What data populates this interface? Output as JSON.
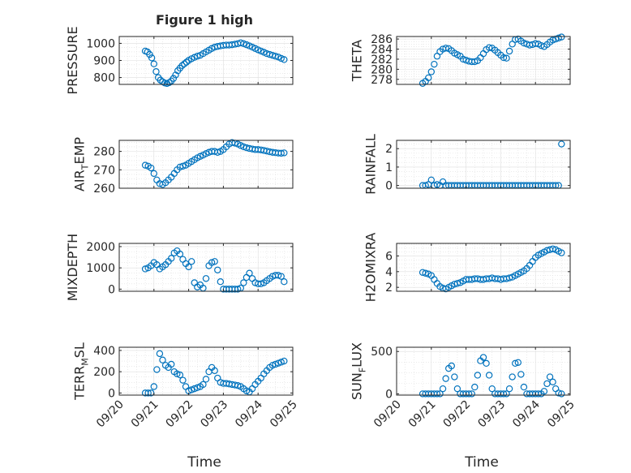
{
  "figure": {
    "title": "Figure 1 high",
    "xlabel": "Time",
    "x_ticks": [
      "09/20",
      "09/21",
      "09/22",
      "09/23",
      "09/24",
      "09/25"
    ]
  },
  "colors": {
    "marker": "#0072bd",
    "axis": "#262626",
    "grid": "#dedede",
    "background": "#ffffff"
  },
  "chart_data": [
    {
      "type": "scatter",
      "id": "pressure",
      "ylabel": "PRESSURE",
      "ylim": [
        760,
        1040
      ],
      "yticks": [
        800,
        900,
        1000
      ],
      "ytick_labels": [
        "800",
        "900",
        "1000"
      ],
      "grid": true,
      "x": [
        "2019-09-20 18:00",
        "2019-09-20 19:30",
        "2019-09-20 21:00",
        "2019-09-20 22:30",
        "2019-09-21 00:00",
        "2019-09-21 01:30",
        "2019-09-21 03:00",
        "2019-09-21 04:30",
        "2019-09-21 06:00",
        "2019-09-21 07:30",
        "2019-09-21 09:00",
        "2019-09-21 10:30",
        "2019-09-21 12:00",
        "2019-09-21 13:30",
        "2019-09-21 15:00",
        "2019-09-21 16:30",
        "2019-09-21 18:00",
        "2019-09-21 19:30",
        "2019-09-21 21:00",
        "2019-09-21 22:30",
        "2019-09-22 00:00",
        "2019-09-22 02:00",
        "2019-09-22 04:00",
        "2019-09-22 06:00",
        "2019-09-22 08:00",
        "2019-09-22 10:00",
        "2019-09-22 12:00",
        "2019-09-22 14:00",
        "2019-09-22 16:00",
        "2019-09-22 18:00",
        "2019-09-22 20:00",
        "2019-09-22 22:00",
        "2019-09-23 00:00",
        "2019-09-23 02:00",
        "2019-09-23 04:00",
        "2019-09-23 06:00",
        "2019-09-23 08:00",
        "2019-09-23 10:00",
        "2019-09-23 12:00",
        "2019-09-23 14:00",
        "2019-09-23 16:00",
        "2019-09-23 18:00",
        "2019-09-23 20:00",
        "2019-09-23 22:00",
        "2019-09-24 00:00",
        "2019-09-24 02:00",
        "2019-09-24 04:00",
        "2019-09-24 06:00",
        "2019-09-24 08:00",
        "2019-09-24 10:00",
        "2019-09-24 12:00",
        "2019-09-24 14:00",
        "2019-09-24 16:00",
        "2019-09-24 18:00"
      ],
      "y": [
        955,
        950,
        935,
        915,
        880,
        835,
        800,
        785,
        775,
        768,
        765,
        770,
        780,
        795,
        815,
        840,
        855,
        870,
        880,
        890,
        900,
        910,
        918,
        925,
        930,
        940,
        950,
        960,
        970,
        978,
        982,
        985,
        988,
        990,
        990,
        992,
        995,
        998,
        1003,
        998,
        992,
        985,
        978,
        970,
        962,
        955,
        948,
        940,
        935,
        930,
        925,
        920,
        912,
        905
      ]
    },
    {
      "type": "scatter",
      "id": "theta",
      "ylabel": "THETA",
      "ylim": [
        277,
        286.5
      ],
      "yticks": [
        278,
        280,
        282,
        284,
        286
      ],
      "ytick_labels": [
        "278",
        "280",
        "282",
        "284",
        "286"
      ],
      "grid": true,
      "x": [
        "2019-09-20 18:00",
        "2019-09-20 20:00",
        "2019-09-20 22:00",
        "2019-09-21 00:00",
        "2019-09-21 02:00",
        "2019-09-21 04:00",
        "2019-09-21 06:00",
        "2019-09-21 08:00",
        "2019-09-21 10:00",
        "2019-09-21 12:00",
        "2019-09-21 14:00",
        "2019-09-21 16:00",
        "2019-09-21 18:00",
        "2019-09-21 20:00",
        "2019-09-21 22:00",
        "2019-09-22 00:00",
        "2019-09-22 02:00",
        "2019-09-22 04:00",
        "2019-09-22 06:00",
        "2019-09-22 08:00",
        "2019-09-22 10:00",
        "2019-09-22 12:00",
        "2019-09-22 14:00",
        "2019-09-22 16:00",
        "2019-09-22 18:00",
        "2019-09-22 20:00",
        "2019-09-22 22:00",
        "2019-09-23 00:00",
        "2019-09-23 02:00",
        "2019-09-23 04:00",
        "2019-09-23 06:00",
        "2019-09-23 08:00",
        "2019-09-23 10:00",
        "2019-09-23 12:00",
        "2019-09-23 14:00",
        "2019-09-23 16:00",
        "2019-09-23 18:00",
        "2019-09-23 20:00",
        "2019-09-23 22:00",
        "2019-09-24 00:00",
        "2019-09-24 02:00",
        "2019-09-24 04:00",
        "2019-09-24 06:00",
        "2019-09-24 08:00",
        "2019-09-24 10:00",
        "2019-09-24 12:00",
        "2019-09-24 14:00",
        "2019-09-24 16:00",
        "2019-09-24 18:00"
      ],
      "y": [
        277.2,
        277.6,
        278.3,
        279.5,
        281.0,
        282.6,
        283.5,
        284.0,
        284.2,
        284.1,
        283.7,
        283.2,
        282.9,
        282.6,
        282.0,
        281.8,
        281.6,
        281.5,
        281.5,
        281.7,
        282.3,
        283.1,
        283.9,
        284.3,
        284.2,
        283.8,
        283.3,
        282.8,
        282.3,
        282.2,
        283.6,
        285.0,
        285.9,
        286.0,
        285.6,
        285.2,
        285.0,
        284.8,
        284.9,
        285.1,
        285.0,
        284.7,
        284.5,
        284.9,
        285.4,
        285.8,
        286.0,
        286.2,
        286.4
      ]
    },
    {
      "type": "scatter",
      "id": "air-temp",
      "ylabel": "AIR_TEMP",
      "ylabel_parts": [
        "AIR",
        "T",
        "EMP"
      ],
      "ylim": [
        260,
        286
      ],
      "yticks": [
        260,
        270,
        280
      ],
      "ytick_labels": [
        "260",
        "270",
        "280"
      ],
      "grid": true,
      "x": [
        "2019-09-20 18:00",
        "2019-09-20 20:00",
        "2019-09-20 22:00",
        "2019-09-21 00:00",
        "2019-09-21 02:00",
        "2019-09-21 04:00",
        "2019-09-21 06:00",
        "2019-09-21 08:00",
        "2019-09-21 10:00",
        "2019-09-21 12:00",
        "2019-09-21 14:00",
        "2019-09-21 16:00",
        "2019-09-21 18:00",
        "2019-09-21 20:00",
        "2019-09-21 22:00",
        "2019-09-22 00:00",
        "2019-09-22 02:00",
        "2019-09-22 04:00",
        "2019-09-22 06:00",
        "2019-09-22 08:00",
        "2019-09-22 10:00",
        "2019-09-22 12:00",
        "2019-09-22 14:00",
        "2019-09-22 16:00",
        "2019-09-22 18:00",
        "2019-09-22 20:00",
        "2019-09-22 22:00",
        "2019-09-23 00:00",
        "2019-09-23 02:00",
        "2019-09-23 04:00",
        "2019-09-23 06:00",
        "2019-09-23 08:00",
        "2019-09-23 10:00",
        "2019-09-23 12:00",
        "2019-09-23 14:00",
        "2019-09-23 16:00",
        "2019-09-23 18:00",
        "2019-09-23 20:00",
        "2019-09-23 22:00",
        "2019-09-24 00:00",
        "2019-09-24 02:00",
        "2019-09-24 04:00",
        "2019-09-24 06:00",
        "2019-09-24 08:00",
        "2019-09-24 10:00",
        "2019-09-24 12:00",
        "2019-09-24 14:00",
        "2019-09-24 16:00",
        "2019-09-24 18:00"
      ],
      "y": [
        272.5,
        272.0,
        271.0,
        268.0,
        264.5,
        262.5,
        262.0,
        263.0,
        264.5,
        266.0,
        268.0,
        270.0,
        271.5,
        272.0,
        272.5,
        273.5,
        274.5,
        275.5,
        276.5,
        277.3,
        278.0,
        278.8,
        279.5,
        280.0,
        280.0,
        279.5,
        280.0,
        281.0,
        282.5,
        284.0,
        284.8,
        284.5,
        284.0,
        283.2,
        282.5,
        282.0,
        281.6,
        281.3,
        281.0,
        281.0,
        280.8,
        280.5,
        280.2,
        279.8,
        279.5,
        279.3,
        279.1,
        279.0,
        279.2
      ]
    },
    {
      "type": "scatter",
      "id": "rainfall",
      "ylabel": "RAINFALL",
      "ylim": [
        -0.15,
        2.45
      ],
      "yticks": [
        0,
        1,
        2
      ],
      "ytick_labels": [
        "0",
        "1",
        "2"
      ],
      "grid": true,
      "x": [
        "2019-09-20 18:00",
        "2019-09-20 20:00",
        "2019-09-20 22:00",
        "2019-09-21 00:00",
        "2019-09-21 02:00",
        "2019-09-21 04:00",
        "2019-09-21 06:00",
        "2019-09-21 08:00",
        "2019-09-21 10:00",
        "2019-09-21 12:00",
        "2019-09-21 14:00",
        "2019-09-21 16:00",
        "2019-09-21 18:00",
        "2019-09-21 20:00",
        "2019-09-21 22:00",
        "2019-09-22 00:00",
        "2019-09-22 02:00",
        "2019-09-22 04:00",
        "2019-09-22 06:00",
        "2019-09-22 08:00",
        "2019-09-22 10:00",
        "2019-09-22 12:00",
        "2019-09-22 14:00",
        "2019-09-22 16:00",
        "2019-09-22 18:00",
        "2019-09-22 20:00",
        "2019-09-22 22:00",
        "2019-09-23 00:00",
        "2019-09-23 02:00",
        "2019-09-23 04:00",
        "2019-09-23 06:00",
        "2019-09-23 08:00",
        "2019-09-23 10:00",
        "2019-09-23 12:00",
        "2019-09-23 14:00",
        "2019-09-23 16:00",
        "2019-09-23 18:00",
        "2019-09-23 20:00",
        "2019-09-23 22:00",
        "2019-09-24 00:00",
        "2019-09-24 02:00",
        "2019-09-24 04:00",
        "2019-09-24 06:00",
        "2019-09-24 08:00",
        "2019-09-24 10:00",
        "2019-09-24 12:00",
        "2019-09-24 14:00",
        "2019-09-24 16:00",
        "2019-09-24 18:00"
      ],
      "y": [
        0,
        0,
        0.05,
        0.3,
        0,
        0.05,
        0,
        0.2,
        0,
        0,
        0,
        0,
        0,
        0,
        0,
        0,
        0,
        0,
        0,
        0,
        0,
        0,
        0,
        0,
        0,
        0,
        0,
        0,
        0,
        0,
        0,
        0,
        0,
        0,
        0,
        0,
        0,
        0,
        0,
        0,
        0,
        0,
        0,
        0,
        0,
        0,
        0,
        0,
        2.25
      ]
    },
    {
      "type": "scatter",
      "id": "mixdepth",
      "ylabel": "MIXDEPTH",
      "ylim": [
        -100,
        2150
      ],
      "yticks": [
        0,
        1000,
        2000
      ],
      "ytick_labels": [
        "0",
        "1000",
        "2000"
      ],
      "grid": true,
      "x": [
        "2019-09-20 18:00",
        "2019-09-20 20:00",
        "2019-09-20 22:00",
        "2019-09-21 00:00",
        "2019-09-21 02:00",
        "2019-09-21 04:00",
        "2019-09-21 06:00",
        "2019-09-21 08:00",
        "2019-09-21 10:00",
        "2019-09-21 12:00",
        "2019-09-21 14:00",
        "2019-09-21 16:00",
        "2019-09-21 18:00",
        "2019-09-21 20:00",
        "2019-09-21 22:00",
        "2019-09-22 00:00",
        "2019-09-22 02:00",
        "2019-09-22 04:00",
        "2019-09-22 06:00",
        "2019-09-22 08:00",
        "2019-09-22 10:00",
        "2019-09-22 12:00",
        "2019-09-22 14:00",
        "2019-09-22 16:00",
        "2019-09-22 18:00",
        "2019-09-22 20:00",
        "2019-09-22 22:00",
        "2019-09-23 00:00",
        "2019-09-23 02:00",
        "2019-09-23 04:00",
        "2019-09-23 06:00",
        "2019-09-23 08:00",
        "2019-09-23 10:00",
        "2019-09-23 12:00",
        "2019-09-23 14:00",
        "2019-09-23 16:00",
        "2019-09-23 18:00",
        "2019-09-23 20:00",
        "2019-09-23 22:00",
        "2019-09-24 00:00",
        "2019-09-24 02:00",
        "2019-09-24 04:00",
        "2019-09-24 06:00",
        "2019-09-24 08:00",
        "2019-09-24 10:00",
        "2019-09-24 12:00",
        "2019-09-24 14:00",
        "2019-09-24 16:00",
        "2019-09-24 18:00"
      ],
      "y": [
        950,
        1000,
        1100,
        1250,
        1150,
        950,
        1050,
        1150,
        1300,
        1450,
        1700,
        1800,
        1650,
        1400,
        1200,
        1050,
        1300,
        300,
        100,
        200,
        50,
        500,
        1100,
        1250,
        1300,
        900,
        350,
        0,
        0,
        0,
        0,
        0,
        0,
        50,
        300,
        550,
        750,
        500,
        300,
        250,
        250,
        300,
        400,
        500,
        600,
        650,
        650,
        600,
        350
      ]
    },
    {
      "type": "scatter",
      "id": "h2omixra",
      "ylabel": "H2OMIXRA",
      "ylim": [
        1.5,
        7.6
      ],
      "yticks": [
        2,
        4,
        6
      ],
      "ytick_labels": [
        "2",
        "4",
        "6"
      ],
      "grid": true,
      "x": [
        "2019-09-20 18:00",
        "2019-09-20 20:00",
        "2019-09-20 22:00",
        "2019-09-21 00:00",
        "2019-09-21 02:00",
        "2019-09-21 04:00",
        "2019-09-21 06:00",
        "2019-09-21 08:00",
        "2019-09-21 10:00",
        "2019-09-21 12:00",
        "2019-09-21 14:00",
        "2019-09-21 16:00",
        "2019-09-21 18:00",
        "2019-09-21 20:00",
        "2019-09-21 22:00",
        "2019-09-22 00:00",
        "2019-09-22 02:00",
        "2019-09-22 04:00",
        "2019-09-22 06:00",
        "2019-09-22 08:00",
        "2019-09-22 10:00",
        "2019-09-22 12:00",
        "2019-09-22 14:00",
        "2019-09-22 16:00",
        "2019-09-22 18:00",
        "2019-09-22 20:00",
        "2019-09-22 22:00",
        "2019-09-23 00:00",
        "2019-09-23 02:00",
        "2019-09-23 04:00",
        "2019-09-23 06:00",
        "2019-09-23 08:00",
        "2019-09-23 10:00",
        "2019-09-23 12:00",
        "2019-09-23 14:00",
        "2019-09-23 16:00",
        "2019-09-23 18:00",
        "2019-09-23 20:00",
        "2019-09-23 22:00",
        "2019-09-24 00:00",
        "2019-09-24 02:00",
        "2019-09-24 04:00",
        "2019-09-24 06:00",
        "2019-09-24 08:00",
        "2019-09-24 10:00",
        "2019-09-24 12:00",
        "2019-09-24 14:00",
        "2019-09-24 16:00",
        "2019-09-24 18:00"
      ],
      "y": [
        3.9,
        3.8,
        3.7,
        3.5,
        3.0,
        2.5,
        2.1,
        1.9,
        1.8,
        2.0,
        2.2,
        2.4,
        2.5,
        2.6,
        2.8,
        3.0,
        3.0,
        3.0,
        3.1,
        3.1,
        3.0,
        3.0,
        3.1,
        3.1,
        3.2,
        3.1,
        3.1,
        3.0,
        3.1,
        3.1,
        3.2,
        3.3,
        3.5,
        3.7,
        3.9,
        4.1,
        4.4,
        4.8,
        5.3,
        5.8,
        6.1,
        6.3,
        6.5,
        6.7,
        6.8,
        6.9,
        6.8,
        6.6,
        6.4
      ]
    },
    {
      "type": "scatter",
      "id": "terr-msl",
      "ylabel": "TERR_MSL",
      "ylabel_parts": [
        "TERR",
        "M",
        "SL"
      ],
      "ylim": [
        -20,
        430
      ],
      "yticks": [
        0,
        200,
        400
      ],
      "ytick_labels": [
        "0",
        "200",
        "400"
      ],
      "grid": true,
      "x": [
        "2019-09-20 18:00",
        "2019-09-20 20:00",
        "2019-09-20 22:00",
        "2019-09-21 00:00",
        "2019-09-21 02:00",
        "2019-09-21 04:00",
        "2019-09-21 06:00",
        "2019-09-21 08:00",
        "2019-09-21 10:00",
        "2019-09-21 12:00",
        "2019-09-21 14:00",
        "2019-09-21 16:00",
        "2019-09-21 18:00",
        "2019-09-21 20:00",
        "2019-09-21 22:00",
        "2019-09-22 00:00",
        "2019-09-22 02:00",
        "2019-09-22 04:00",
        "2019-09-22 06:00",
        "2019-09-22 08:00",
        "2019-09-22 10:00",
        "2019-09-22 12:00",
        "2019-09-22 14:00",
        "2019-09-22 16:00",
        "2019-09-22 18:00",
        "2019-09-22 20:00",
        "2019-09-22 22:00",
        "2019-09-23 00:00",
        "2019-09-23 02:00",
        "2019-09-23 04:00",
        "2019-09-23 06:00",
        "2019-09-23 08:00",
        "2019-09-23 10:00",
        "2019-09-23 12:00",
        "2019-09-23 14:00",
        "2019-09-23 16:00",
        "2019-09-23 18:00",
        "2019-09-23 20:00",
        "2019-09-23 22:00",
        "2019-09-24 00:00",
        "2019-09-24 02:00",
        "2019-09-24 04:00",
        "2019-09-24 06:00",
        "2019-09-24 08:00",
        "2019-09-24 10:00",
        "2019-09-24 12:00",
        "2019-09-24 14:00",
        "2019-09-24 16:00",
        "2019-09-24 18:00"
      ],
      "y": [
        0,
        0,
        0,
        60,
        220,
        370,
        310,
        260,
        240,
        270,
        200,
        180,
        170,
        120,
        60,
        20,
        30,
        40,
        50,
        60,
        80,
        130,
        200,
        240,
        210,
        140,
        100,
        90,
        90,
        85,
        80,
        75,
        70,
        60,
        40,
        20,
        10,
        40,
        80,
        110,
        140,
        180,
        210,
        240,
        260,
        270,
        280,
        290,
        300
      ]
    },
    {
      "type": "scatter",
      "id": "sun-flux",
      "ylabel": "SUN_FLUX",
      "ylabel_parts": [
        "SUN",
        "F",
        "LUX"
      ],
      "ylim": [
        -15,
        550
      ],
      "yticks": [
        0,
        500
      ],
      "ytick_labels": [
        "0",
        "500"
      ],
      "grid": true,
      "x": [
        "2019-09-20 18:00",
        "2019-09-20 20:00",
        "2019-09-20 22:00",
        "2019-09-21 00:00",
        "2019-09-21 02:00",
        "2019-09-21 04:00",
        "2019-09-21 06:00",
        "2019-09-21 08:00",
        "2019-09-21 10:00",
        "2019-09-21 12:00",
        "2019-09-21 14:00",
        "2019-09-21 16:00",
        "2019-09-21 18:00",
        "2019-09-21 20:00",
        "2019-09-21 22:00",
        "2019-09-22 00:00",
        "2019-09-22 02:00",
        "2019-09-22 04:00",
        "2019-09-22 06:00",
        "2019-09-22 08:00",
        "2019-09-22 10:00",
        "2019-09-22 12:00",
        "2019-09-22 14:00",
        "2019-09-22 16:00",
        "2019-09-22 18:00",
        "2019-09-22 20:00",
        "2019-09-22 22:00",
        "2019-09-23 00:00",
        "2019-09-23 02:00",
        "2019-09-23 04:00",
        "2019-09-23 06:00",
        "2019-09-23 08:00",
        "2019-09-23 10:00",
        "2019-09-23 12:00",
        "2019-09-23 14:00",
        "2019-09-23 16:00",
        "2019-09-23 18:00",
        "2019-09-23 20:00",
        "2019-09-23 22:00",
        "2019-09-24 00:00",
        "2019-09-24 02:00",
        "2019-09-24 04:00",
        "2019-09-24 06:00",
        "2019-09-24 08:00",
        "2019-09-24 10:00",
        "2019-09-24 12:00",
        "2019-09-24 14:00",
        "2019-09-24 16:00",
        "2019-09-24 18:00"
      ],
      "y": [
        0,
        0,
        0,
        0,
        0,
        0,
        0,
        60,
        180,
        300,
        330,
        200,
        60,
        0,
        0,
        0,
        0,
        0,
        80,
        220,
        390,
        430,
        360,
        220,
        60,
        0,
        0,
        0,
        0,
        0,
        60,
        200,
        360,
        370,
        230,
        80,
        0,
        0,
        0,
        0,
        0,
        0,
        30,
        120,
        200,
        140,
        60,
        10,
        0
      ]
    }
  ]
}
